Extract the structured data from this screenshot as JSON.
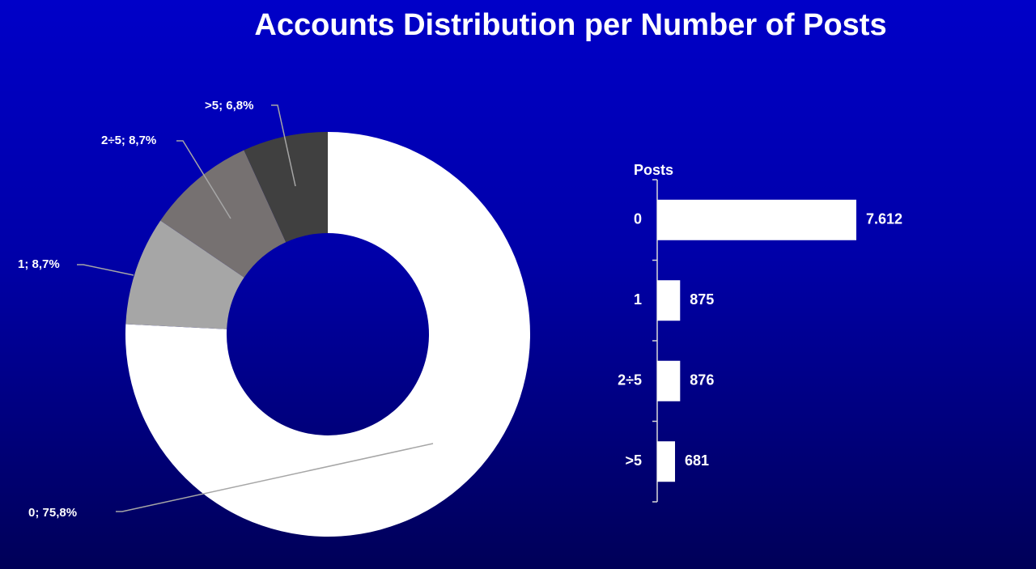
{
  "title": "Accounts Distribution per Number of Posts",
  "chart_data": [
    {
      "type": "donut",
      "categories": [
        "0",
        "1",
        "2÷5",
        ">5"
      ],
      "values": [
        75.8,
        8.7,
        8.7,
        6.8
      ],
      "value_labels": [
        "0; 75,8%",
        "1; 8,7%",
        "2÷5; 8,7%",
        ">5; 6,8%"
      ],
      "colors": [
        "#ffffff",
        "#a6a6a6",
        "#767171",
        "#404040"
      ]
    },
    {
      "type": "hbar",
      "y_label": "Posts",
      "categories": [
        "0",
        "1",
        "2÷5",
        ">5"
      ],
      "values": [
        7612,
        875,
        876,
        681
      ],
      "value_labels": [
        "7.612",
        "875",
        "876",
        "681"
      ],
      "color": "#ffffff"
    }
  ]
}
